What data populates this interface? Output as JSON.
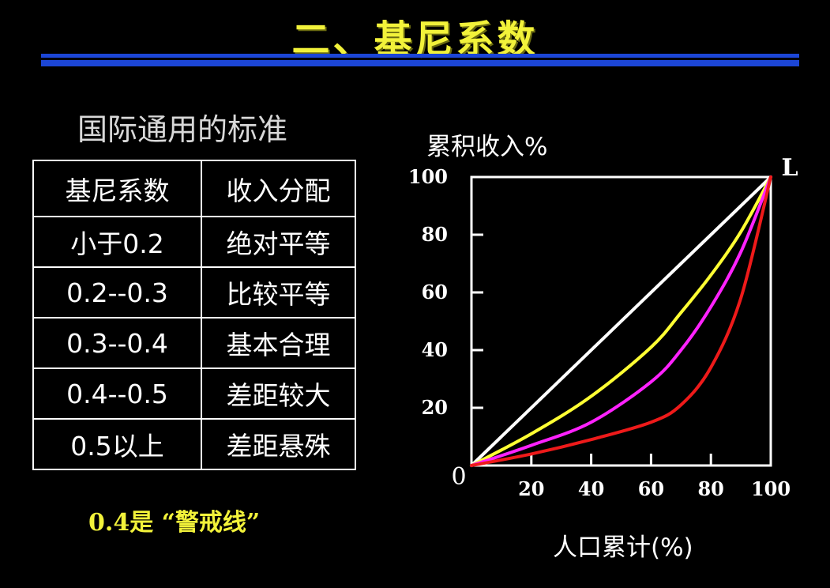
{
  "slide": {
    "title": "二、基尼系数",
    "subtitle": "国际通用的标准",
    "note": "0.4是 “警戒线”",
    "accent_color": "#f2f23a",
    "rule_color": "#1c46d6"
  },
  "table": {
    "headers": [
      "基尼系数",
      "收入分配"
    ],
    "rows": [
      [
        "小于0.2",
        "绝对平等"
      ],
      [
        "0.2--0.3",
        "比较平等"
      ],
      [
        "0.3--0.4",
        "基本合理"
      ],
      [
        "0.4--0.5",
        "差距较大"
      ],
      [
        "0.5以上",
        "差距悬殊"
      ]
    ]
  },
  "chart_data": {
    "type": "line",
    "title": "",
    "xlabel": "人口累计(%)",
    "ylabel": "累积收入%",
    "xlim": [
      0,
      100
    ],
    "ylim": [
      0,
      100
    ],
    "x_ticks": [
      "20",
      "40",
      "60",
      "80",
      "100"
    ],
    "y_ticks": [
      "20",
      "40",
      "60",
      "80",
      "100"
    ],
    "origin_label": "0",
    "corner_label": "L",
    "grid": false,
    "series": [
      {
        "color": "#ffffff",
        "x": [
          0,
          100
        ],
        "y": [
          0,
          100
        ]
      },
      {
        "color": "#ffff33",
        "x": [
          0,
          20,
          40,
          60,
          70,
          80,
          90,
          100
        ],
        "y": [
          0,
          11,
          24,
          41,
          53,
          66,
          81,
          100
        ]
      },
      {
        "color": "#ff22ff",
        "x": [
          0,
          20,
          40,
          60,
          70,
          80,
          90,
          100
        ],
        "y": [
          0,
          7,
          15,
          29,
          40,
          55,
          74,
          100
        ]
      },
      {
        "color": "#ee1a1a",
        "x": [
          0,
          20,
          40,
          60,
          70,
          80,
          90,
          100
        ],
        "y": [
          0,
          4,
          9,
          15,
          21,
          34,
          58,
          100
        ]
      }
    ]
  }
}
